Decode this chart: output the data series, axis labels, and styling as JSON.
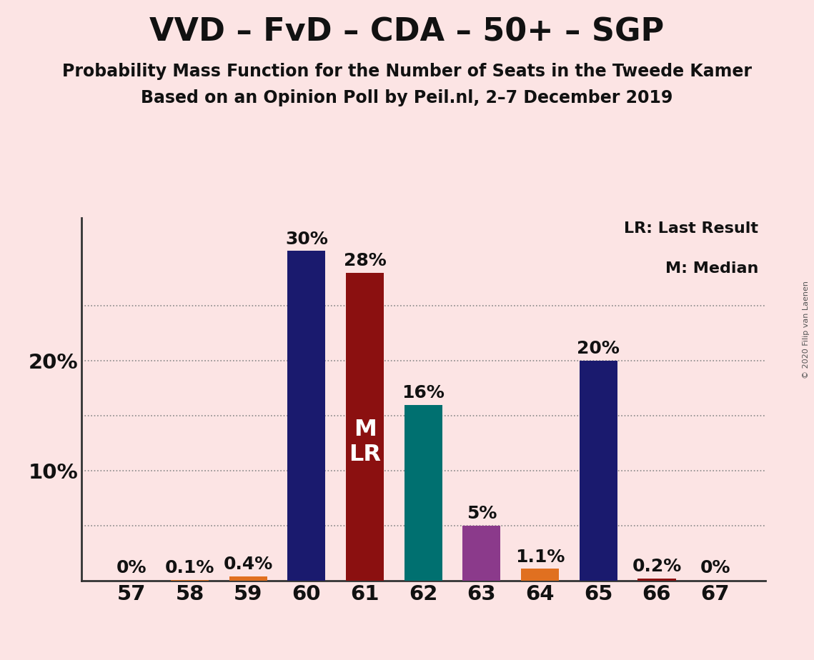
{
  "title": "VVD – FvD – CDA – 50+ – SGP",
  "subtitle1": "Probability Mass Function for the Number of Seats in the Tweede Kamer",
  "subtitle2": "Based on an Opinion Poll by Peil.nl, 2–7 December 2019",
  "copyright": "© 2020 Filip van Laenen",
  "legend_line1": "LR: Last Result",
  "legend_line2": "M: Median",
  "background_color": "#fce4e4",
  "categories": [
    57,
    58,
    59,
    60,
    61,
    62,
    63,
    64,
    65,
    66,
    67
  ],
  "values": [
    0.0,
    0.1,
    0.4,
    30.0,
    28.0,
    16.0,
    5.0,
    1.1,
    20.0,
    0.2,
    0.0
  ],
  "bar_colors": [
    "#1a1a6e",
    "#e07020",
    "#e07020",
    "#1a1a6e",
    "#8b1010",
    "#007070",
    "#8b3a8b",
    "#e07020",
    "#1a1a6e",
    "#8b1010",
    "#1a1a6e"
  ],
  "value_labels": [
    "0%",
    "0.1%",
    "0.4%",
    "30%",
    "28%",
    "16%",
    "5%",
    "1.1%",
    "20%",
    "0.2%",
    "0%"
  ],
  "median_bar": 61,
  "last_result_bar": 61,
  "ylim_max": 33,
  "ytick_positions": [
    10,
    20
  ],
  "ytick_labels": [
    "10%",
    "20%"
  ],
  "grid_positions": [
    5,
    10,
    15,
    20,
    25
  ],
  "title_fontsize": 32,
  "subtitle_fontsize": 17,
  "axis_fontsize": 21,
  "label_fontsize": 18,
  "ml_fontsize": 23,
  "legend_fontsize": 16,
  "grid_color": "#888888",
  "spine_color": "#333333",
  "text_color": "#111111",
  "white": "#ffffff"
}
